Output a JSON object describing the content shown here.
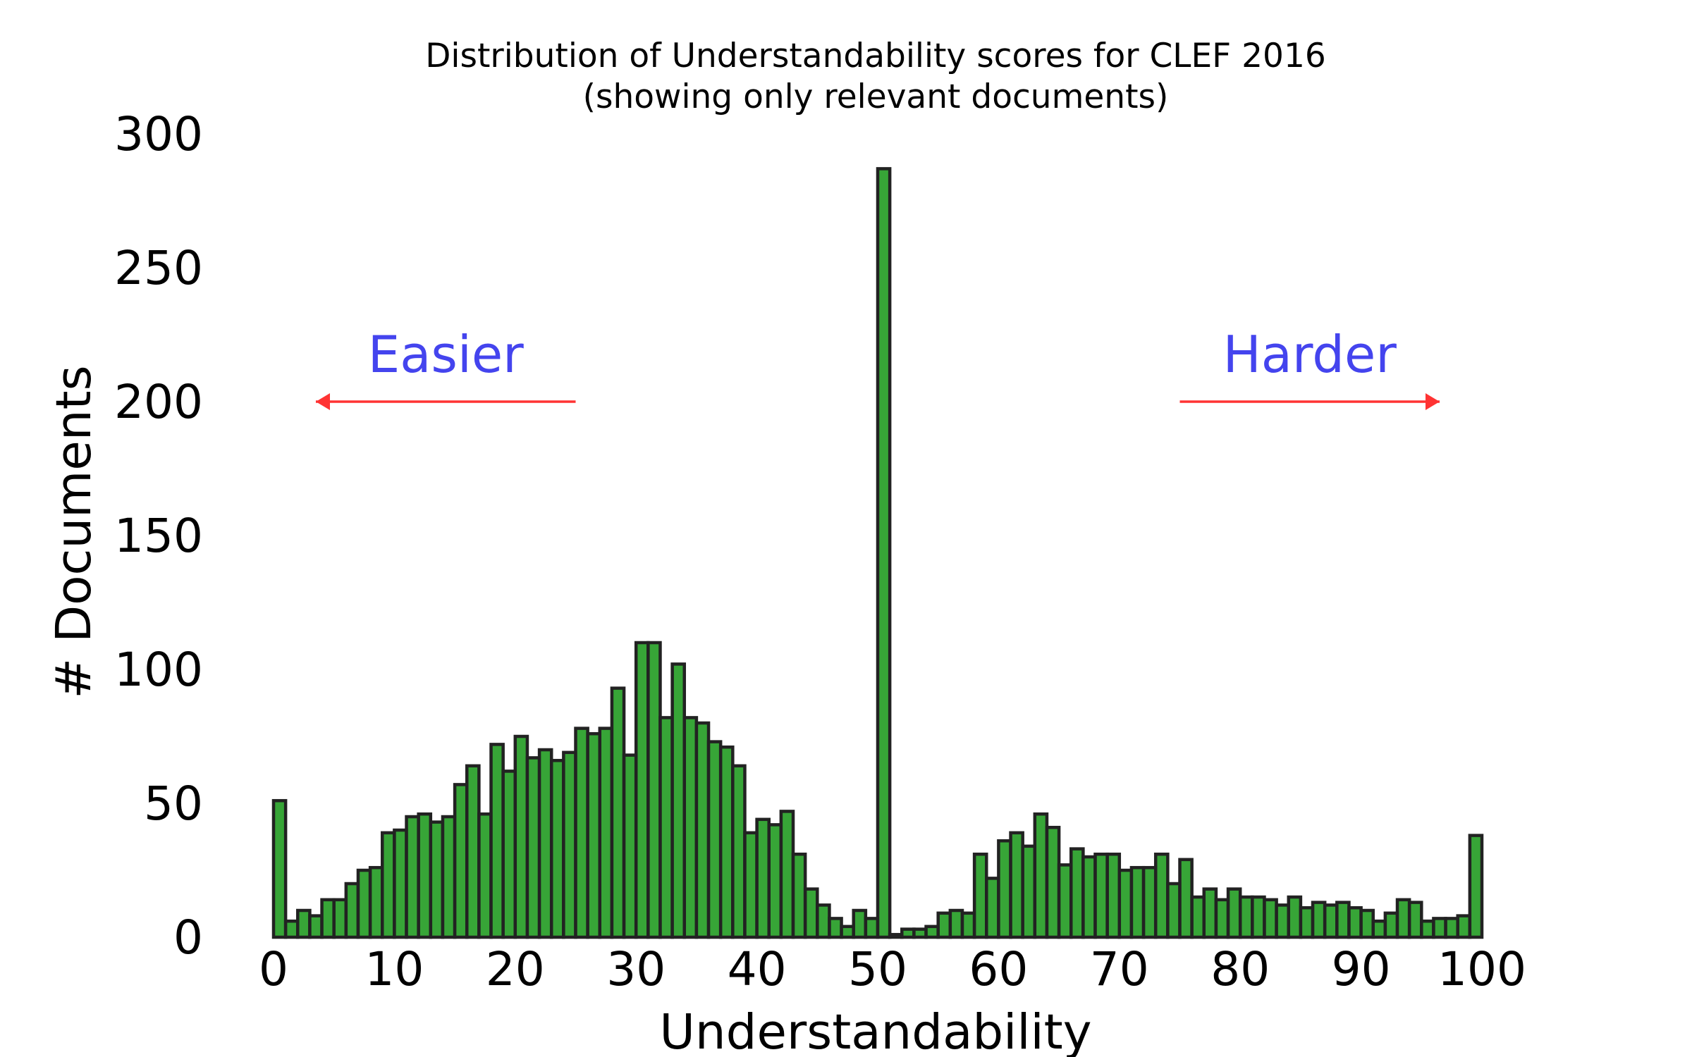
{
  "chart_data": {
    "type": "bar",
    "title": "Distribution of Understandability scores for CLEF 2016",
    "subtitle": "(showing only relevant documents)",
    "xlabel": "Understandability",
    "ylabel": "# Documents",
    "xlim": [
      0,
      100
    ],
    "ylim": [
      0,
      300
    ],
    "xticks": [
      "0",
      "10",
      "20",
      "30",
      "40",
      "50",
      "60",
      "70",
      "80",
      "90",
      "100"
    ],
    "yticks": [
      "0",
      "50",
      "100",
      "150",
      "200",
      "250",
      "300"
    ],
    "grid": false,
    "bar_color": "#2ca02c",
    "bar_edge_color": "#222222",
    "arrow_color": "#ff3333",
    "annotation_color": "#4444ee",
    "bins_start": [
      0,
      1,
      2,
      3,
      4,
      5,
      6,
      7,
      8,
      9,
      10,
      11,
      12,
      13,
      14,
      15,
      16,
      17,
      18,
      19,
      20,
      21,
      22,
      23,
      24,
      25,
      26,
      27,
      28,
      29,
      30,
      31,
      32,
      33,
      34,
      35,
      36,
      37,
      38,
      39,
      40,
      41,
      42,
      43,
      44,
      45,
      46,
      47,
      48,
      49,
      50,
      51,
      52,
      53,
      54,
      55,
      56,
      57,
      58,
      59,
      60,
      61,
      62,
      63,
      64,
      65,
      66,
      67,
      68,
      69,
      70,
      71,
      72,
      73,
      74,
      75,
      76,
      77,
      78,
      79,
      80,
      81,
      82,
      83,
      84,
      85,
      86,
      87,
      88,
      89,
      90,
      91,
      92,
      93,
      94,
      95,
      96,
      97,
      98,
      99
    ],
    "bin_width": 1,
    "values": [
      51,
      6,
      10,
      8,
      14,
      14,
      20,
      25,
      26,
      39,
      40,
      45,
      46,
      43,
      45,
      57,
      64,
      46,
      72,
      62,
      75,
      67,
      70,
      66,
      69,
      78,
      76,
      78,
      93,
      68,
      110,
      110,
      82,
      102,
      82,
      80,
      73,
      71,
      64,
      39,
      44,
      42,
      47,
      31,
      18,
      12,
      7,
      4,
      10,
      7,
      287,
      1,
      3,
      3,
      4,
      9,
      10,
      9,
      31,
      22,
      36,
      39,
      34,
      46,
      41,
      27,
      33,
      30,
      31,
      31,
      25,
      26,
      26,
      31,
      20,
      29,
      15,
      18,
      14,
      18,
      15,
      15,
      14,
      12,
      15,
      11,
      13,
      12,
      13,
      11,
      10,
      6,
      9,
      14,
      13,
      6,
      7,
      7,
      8,
      38
    ],
    "annotations": [
      {
        "text": "Easier",
        "direction": "left",
        "arrow_from": 25,
        "arrow_to": 3.5,
        "y": 200
      },
      {
        "text": "Harder",
        "direction": "right",
        "arrow_from": 75,
        "arrow_to": 96.5,
        "y": 200
      }
    ]
  }
}
